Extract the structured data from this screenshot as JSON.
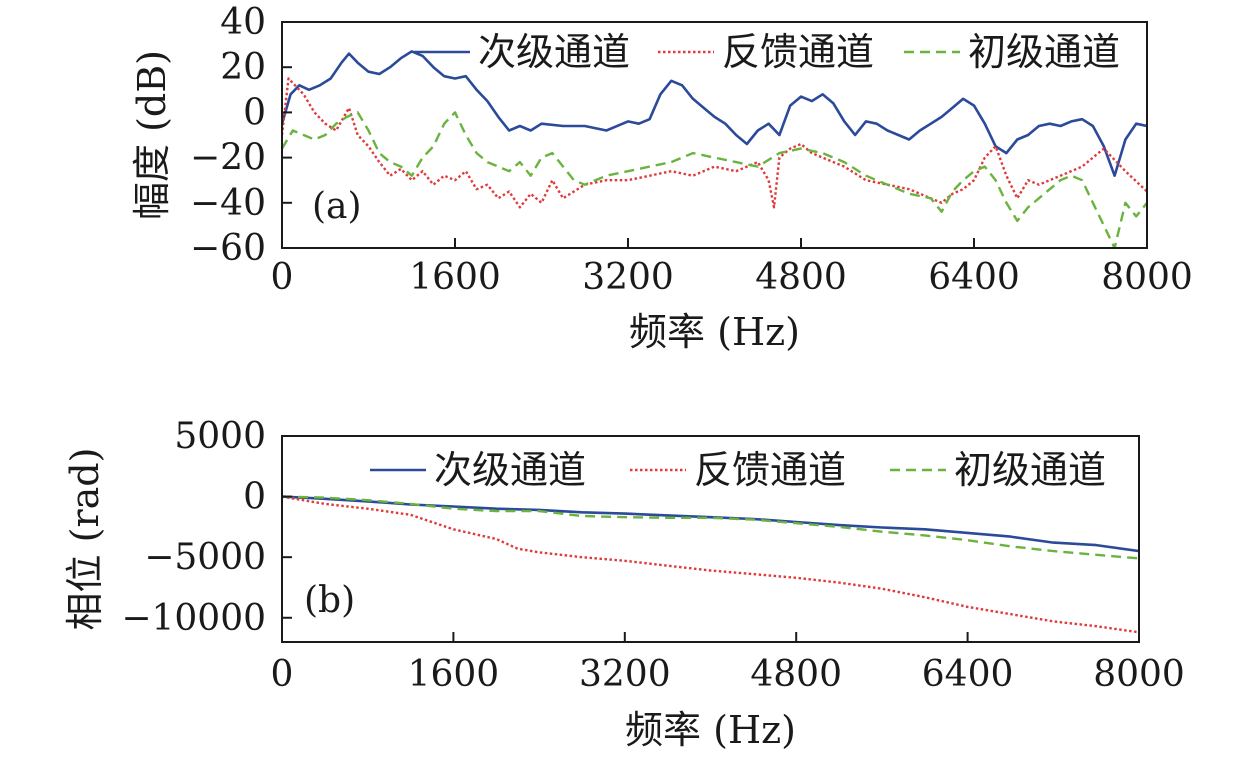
{
  "chart_data": [
    {
      "panel": "(a)",
      "type": "line",
      "xlabel": "频率 (Hz)",
      "ylabel": "幅度 (dB)",
      "xlim": [
        0,
        8000
      ],
      "ylim": [
        -60,
        40
      ],
      "xticks": [
        0,
        1600,
        3200,
        4800,
        6400,
        8000
      ],
      "yticks": [
        -60,
        -40,
        -20,
        0,
        20,
        40
      ],
      "xtick_labels": [
        "0",
        "1600",
        "3200",
        "4800",
        "6400",
        "8000"
      ],
      "ytick_labels": [
        "−60",
        "−40",
        "−20",
        "0",
        "20",
        "40"
      ],
      "legend_position": "top-right",
      "grid": false,
      "series": [
        {
          "name": "次级通道",
          "color": "#2b4a9a",
          "style": "solid",
          "x": [
            0,
            80,
            160,
            250,
            350,
            450,
            550,
            620,
            700,
            800,
            900,
            1000,
            1100,
            1200,
            1300,
            1400,
            1500,
            1600,
            1700,
            1800,
            1900,
            2000,
            2100,
            2200,
            2300,
            2400,
            2600,
            2800,
            3000,
            3200,
            3300,
            3400,
            3500,
            3600,
            3700,
            3800,
            3900,
            4000,
            4100,
            4200,
            4300,
            4400,
            4500,
            4600,
            4700,
            4800,
            4900,
            5000,
            5100,
            5200,
            5300,
            5400,
            5500,
            5600,
            5700,
            5800,
            5900,
            6000,
            6100,
            6200,
            6300,
            6400,
            6500,
            6600,
            6700,
            6800,
            6900,
            7000,
            7100,
            7200,
            7300,
            7400,
            7500,
            7600,
            7700,
            7800,
            7900,
            8000
          ],
          "values": [
            -5,
            8,
            12,
            10,
            12,
            15,
            22,
            26,
            22,
            18,
            17,
            20,
            24,
            27,
            25,
            20,
            16,
            15,
            16,
            10,
            5,
            -2,
            -8,
            -6,
            -8,
            -5,
            -6,
            -6,
            -8,
            -4,
            -5,
            -3,
            8,
            14,
            12,
            6,
            2,
            -2,
            -5,
            -10,
            -14,
            -8,
            -5,
            -10,
            3,
            7,
            5,
            8,
            4,
            -4,
            -10,
            -4,
            -5,
            -8,
            -10,
            -12,
            -8,
            -5,
            -2,
            2,
            6,
            3,
            -5,
            -15,
            -18,
            -12,
            -10,
            -6,
            -5,
            -6,
            -4,
            -3,
            -6,
            -15,
            -28,
            -12,
            -5,
            -6
          ]
        },
        {
          "name": "反馈通道",
          "color": "#e03a3a",
          "style": "dotted",
          "x": [
            0,
            60,
            120,
            200,
            300,
            400,
            500,
            620,
            700,
            800,
            900,
            1000,
            1100,
            1200,
            1300,
            1400,
            1500,
            1600,
            1700,
            1800,
            1900,
            2000,
            2100,
            2200,
            2300,
            2400,
            2500,
            2600,
            2700,
            2800,
            3000,
            3200,
            3400,
            3600,
            3800,
            4000,
            4200,
            4400,
            4500,
            4550,
            4600,
            4700,
            4800,
            4900,
            5000,
            5200,
            5400,
            5600,
            5800,
            6000,
            6100,
            6200,
            6300,
            6400,
            6500,
            6600,
            6700,
            6800,
            6900,
            7000,
            7200,
            7400,
            7500,
            7600,
            7800,
            8000
          ],
          "values": [
            -10,
            15,
            12,
            8,
            0,
            -5,
            -8,
            2,
            -10,
            -15,
            -22,
            -28,
            -25,
            -30,
            -26,
            -32,
            -28,
            -30,
            -26,
            -34,
            -32,
            -38,
            -35,
            -42,
            -36,
            -40,
            -30,
            -38,
            -35,
            -32,
            -30,
            -30,
            -28,
            -26,
            -28,
            -24,
            -26,
            -22,
            -30,
            -42,
            -20,
            -16,
            -14,
            -18,
            -20,
            -24,
            -30,
            -32,
            -34,
            -38,
            -40,
            -36,
            -34,
            -30,
            -20,
            -15,
            -28,
            -38,
            -30,
            -32,
            -28,
            -24,
            -20,
            -16,
            -26,
            -35
          ]
        },
        {
          "name": "初级通道",
          "color": "#6ab33e",
          "style": "dashed",
          "x": [
            0,
            100,
            200,
            300,
            400,
            500,
            600,
            700,
            800,
            900,
            1000,
            1100,
            1200,
            1300,
            1400,
            1500,
            1600,
            1700,
            1800,
            1900,
            2000,
            2100,
            2200,
            2300,
            2400,
            2500,
            2600,
            2700,
            2800,
            3000,
            3200,
            3400,
            3600,
            3800,
            4000,
            4200,
            4400,
            4600,
            4800,
            5000,
            5200,
            5400,
            5600,
            5800,
            6000,
            6100,
            6200,
            6300,
            6400,
            6500,
            6600,
            6700,
            6800,
            6900,
            7000,
            7100,
            7200,
            7300,
            7400,
            7500,
            7600,
            7700,
            7800,
            7900,
            8000
          ],
          "values": [
            -16,
            -8,
            -10,
            -12,
            -10,
            -5,
            -2,
            0,
            -8,
            -18,
            -22,
            -24,
            -28,
            -20,
            -15,
            -5,
            0,
            -10,
            -18,
            -22,
            -24,
            -26,
            -22,
            -28,
            -20,
            -18,
            -24,
            -30,
            -32,
            -28,
            -26,
            -24,
            -22,
            -18,
            -20,
            -22,
            -24,
            -18,
            -16,
            -18,
            -22,
            -28,
            -32,
            -36,
            -38,
            -44,
            -35,
            -30,
            -26,
            -24,
            -30,
            -40,
            -48,
            -42,
            -38,
            -34,
            -30,
            -28,
            -30,
            -40,
            -50,
            -60,
            -40,
            -46,
            -40
          ]
        }
      ]
    },
    {
      "panel": "(b)",
      "type": "line",
      "xlabel": "频率 (Hz)",
      "ylabel": "相位 (rad)",
      "xlim": [
        0,
        8000
      ],
      "ylim": [
        -12000,
        5000
      ],
      "xticks": [
        0,
        1600,
        3200,
        4800,
        6400,
        8000
      ],
      "yticks": [
        -10000,
        -5000,
        0,
        5000
      ],
      "xtick_labels": [
        "0",
        "1600",
        "3200",
        "4800",
        "6400",
        "8000"
      ],
      "ytick_labels": [
        "−10000",
        "−5000",
        "0",
        "5000"
      ],
      "legend_position": "top-right",
      "grid": false,
      "series": [
        {
          "name": "次级通道",
          "color": "#2b4a9a",
          "style": "solid",
          "x": [
            0,
            400,
            800,
            1200,
            1600,
            2000,
            2400,
            2800,
            3200,
            3600,
            4000,
            4400,
            4800,
            5200,
            5600,
            6000,
            6400,
            6800,
            7200,
            7600,
            8000
          ],
          "values": [
            0,
            -180,
            -400,
            -650,
            -820,
            -1000,
            -1100,
            -1300,
            -1400,
            -1550,
            -1700,
            -1850,
            -2100,
            -2350,
            -2550,
            -2700,
            -3000,
            -3300,
            -3800,
            -4000,
            -4500
          ]
        },
        {
          "name": "反馈通道",
          "color": "#e03a3a",
          "style": "dotted",
          "x": [
            0,
            400,
            800,
            1200,
            1600,
            2000,
            2200,
            2400,
            2800,
            3200,
            3600,
            4000,
            4400,
            4800,
            5200,
            5600,
            6000,
            6400,
            6800,
            7200,
            7600,
            8000
          ],
          "values": [
            0,
            -600,
            -1000,
            -1500,
            -2700,
            -3500,
            -4300,
            -4600,
            -5000,
            -5300,
            -5700,
            -6100,
            -6400,
            -6700,
            -7100,
            -7600,
            -8300,
            -9100,
            -9700,
            -10300,
            -10700,
            -11200
          ]
        },
        {
          "name": "初级通道",
          "color": "#6ab33e",
          "style": "dashed",
          "x": [
            0,
            400,
            800,
            1200,
            1600,
            2000,
            2400,
            2800,
            3200,
            3600,
            4000,
            4400,
            4800,
            5200,
            5600,
            6000,
            6400,
            6800,
            7200,
            7600,
            8000
          ],
          "values": [
            0,
            -80,
            -300,
            -600,
            -1000,
            -1200,
            -1200,
            -1600,
            -1700,
            -1750,
            -1750,
            -1900,
            -2200,
            -2500,
            -2900,
            -3200,
            -3600,
            -4100,
            -4500,
            -4800,
            -5100
          ]
        }
      ]
    }
  ]
}
